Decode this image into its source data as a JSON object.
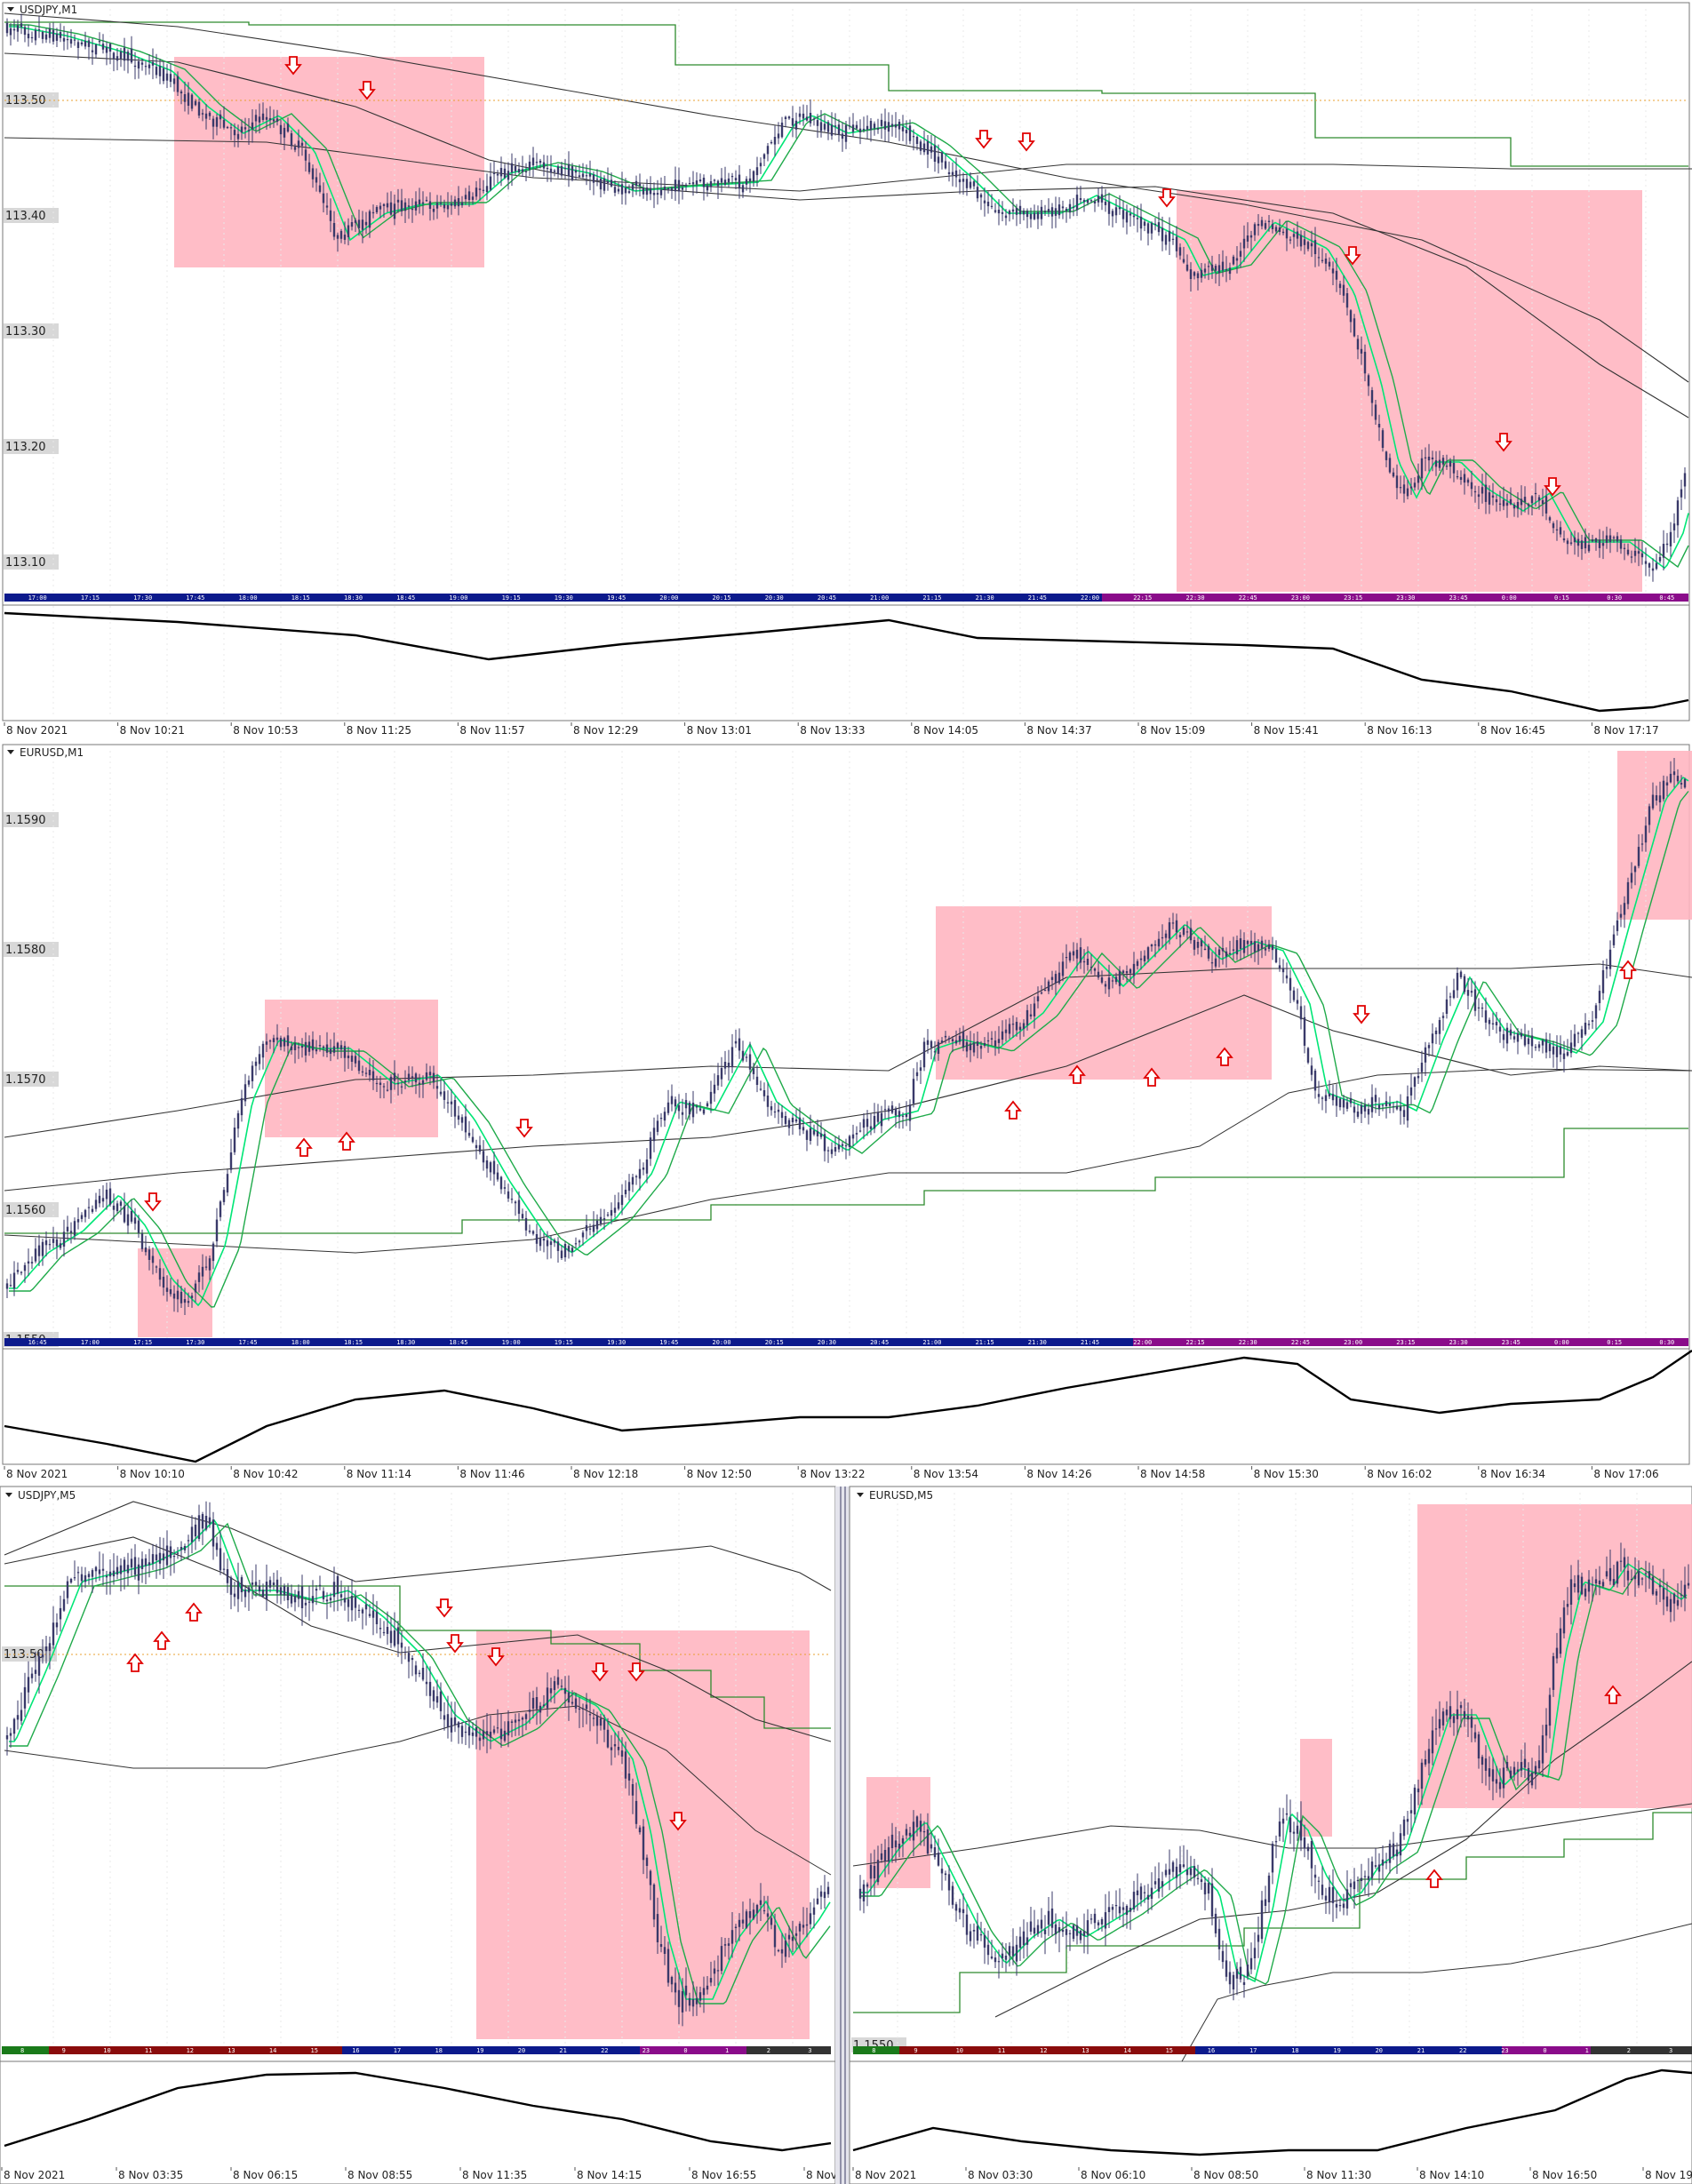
{
  "colors": {
    "candle": "#3a3a6a",
    "zone": "#ffb6c1",
    "ma_fast": "#00e676",
    "ma_slow": "#1faa4a",
    "ma_long": "#333333",
    "step_line": "#2e8b2e",
    "osc": "#000000",
    "arrow": "#e00000",
    "price_label_bg": "#d8d8d8",
    "bar_blue": "#0c1a8c",
    "bar_purple": "#8a0c8a",
    "bar_red": "#8a0c0c",
    "bar_green": "#1a7a1a"
  },
  "chart_data": [
    {
      "type": "candlestick",
      "title": "USDJPY,M1",
      "y_ticks": [
        "113.50",
        "113.40",
        "113.30",
        "113.20",
        "113.10"
      ],
      "session_ticks": [
        "17:00",
        "17:15",
        "17:30",
        "17:45",
        "18:00",
        "18:15",
        "18:30",
        "18:45",
        "19:00",
        "19:15",
        "19:30",
        "19:45",
        "20:00",
        "20:15",
        "20:30",
        "20:45",
        "21:00",
        "21:15",
        "21:30",
        "21:45",
        "22:00",
        "22:15",
        "22:30",
        "22:45",
        "23:00",
        "23:15",
        "23:30",
        "23:45",
        "0:00",
        "0:15",
        "0:30",
        "0:45"
      ],
      "x_ticks": [
        "8 Nov 2021",
        "8 Nov 10:21",
        "8 Nov 10:53",
        "8 Nov 11:25",
        "8 Nov 11:57",
        "8 Nov 12:29",
        "8 Nov 13:01",
        "8 Nov 13:33",
        "8 Nov 14:05",
        "8 Nov 14:37",
        "8 Nov 15:09",
        "8 Nov 15:41",
        "8 Nov 16:13",
        "8 Nov 16:45",
        "8 Nov 17:17"
      ]
    },
    {
      "type": "candlestick",
      "title": "EURUSD,M1",
      "y_ticks": [
        "1.1590",
        "1.1580",
        "1.1570",
        "1.1560",
        "1.1550"
      ],
      "session_ticks": [
        "16:45",
        "17:00",
        "17:15",
        "17:30",
        "17:45",
        "18:00",
        "18:15",
        "18:30",
        "18:45",
        "19:00",
        "19:15",
        "19:30",
        "19:45",
        "20:00",
        "20:15",
        "20:30",
        "20:45",
        "21:00",
        "21:15",
        "21:30",
        "21:45",
        "22:00",
        "22:15",
        "22:30",
        "22:45",
        "23:00",
        "23:15",
        "23:30",
        "23:45",
        "0:00",
        "0:15",
        "0:30"
      ],
      "x_ticks": [
        "8 Nov 2021",
        "8 Nov 10:10",
        "8 Nov 10:42",
        "8 Nov 11:14",
        "8 Nov 11:46",
        "8 Nov 12:18",
        "8 Nov 12:50",
        "8 Nov 13:22",
        "8 Nov 13:54",
        "8 Nov 14:26",
        "8 Nov 14:58",
        "8 Nov 15:30",
        "8 Nov 16:02",
        "8 Nov 16:34",
        "8 Nov 17:06"
      ]
    },
    {
      "type": "candlestick",
      "title": "USDJPY,M5",
      "y_ticks": [
        "113.50"
      ],
      "session_ticks": [
        "8",
        "9",
        "10",
        "11",
        "12",
        "13",
        "14",
        "15",
        "16",
        "17",
        "18",
        "19",
        "20",
        "21",
        "22",
        "23",
        "0",
        "1",
        "2",
        "3"
      ],
      "x_ticks": [
        "8 Nov 2021",
        "8 Nov 03:35",
        "8 Nov 06:15",
        "8 Nov 08:55",
        "8 Nov 11:35",
        "8 Nov 14:15",
        "8 Nov 16:55",
        "8 Nov"
      ]
    },
    {
      "type": "candlestick",
      "title": "EURUSD,M5",
      "y_ticks": [
        "1.1550"
      ],
      "session_ticks": [
        "8",
        "9",
        "10",
        "11",
        "12",
        "13",
        "14",
        "15",
        "16",
        "17",
        "18",
        "19",
        "20",
        "21",
        "22",
        "23",
        "0",
        "1",
        "2",
        "3"
      ],
      "x_ticks": [
        "8 Nov 2021",
        "8 Nov 03:30",
        "8 Nov 06:10",
        "8 Nov 08:50",
        "8 Nov 11:30",
        "8 Nov 14:10",
        "8 Nov 16:50",
        "8 Nov 19"
      ]
    }
  ]
}
